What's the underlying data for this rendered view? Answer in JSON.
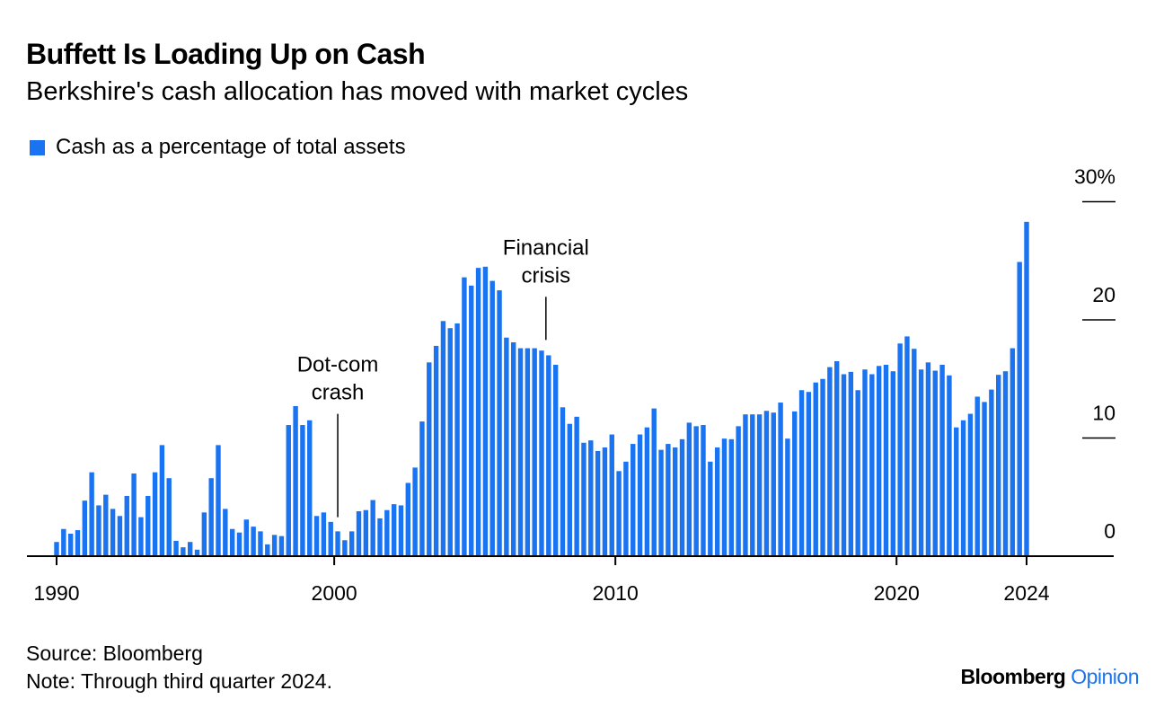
{
  "header": {
    "title": "Buffett Is Loading Up on Cash",
    "subtitle": "Berkshire's cash allocation has moved with market cycles"
  },
  "chart_data": {
    "type": "bar",
    "title": "Buffett Is Loading Up on Cash",
    "subtitle": "Berkshire's cash allocation has moved with market cycles",
    "legend": [
      {
        "label": "Cash as a percentage of total assets",
        "color": "#1a73f0"
      }
    ],
    "legend_position": "top-left",
    "xlabel": "",
    "ylabel": "",
    "frequency": "quarterly",
    "start": "1990 Q1",
    "end": "2024 Q3",
    "ylim": [
      0,
      30
    ],
    "grid": false,
    "y_ticks": [
      {
        "value": 0,
        "label": "0"
      },
      {
        "value": 10,
        "label": "10"
      },
      {
        "value": 20,
        "label": "20"
      },
      {
        "value": 30,
        "label": "30%"
      }
    ],
    "x_ticks": [
      {
        "quarter_index": 0,
        "label": "1990"
      },
      {
        "quarter_index": 39.5,
        "label": "2000"
      },
      {
        "quarter_index": 79.5,
        "label": "2010"
      },
      {
        "quarter_index": 119.5,
        "label": "2020"
      },
      {
        "quarter_index": 138,
        "label": "2024"
      }
    ],
    "annotations": [
      {
        "lines": [
          "Dot-com",
          "crash"
        ],
        "quarter_index": 40,
        "value": 3.3
      },
      {
        "lines": [
          "Financial",
          "crisis"
        ],
        "quarter_index": 70,
        "value": 18.3
      }
    ],
    "values": [
      1.2,
      2.3,
      1.9,
      2.2,
      4.7,
      7.1,
      4.3,
      5.2,
      4.0,
      3.4,
      5.1,
      7.0,
      3.3,
      5.1,
      7.1,
      9.4,
      6.6,
      1.3,
      0.75,
      1.2,
      0.55,
      3.7,
      6.6,
      9.4,
      4.0,
      2.3,
      2.0,
      3.1,
      2.5,
      2.1,
      1.0,
      1.8,
      1.7,
      11.1,
      12.7,
      11.1,
      11.5,
      3.4,
      3.7,
      2.9,
      2.1,
      1.35,
      2.1,
      3.8,
      3.9,
      4.75,
      3.2,
      3.9,
      4.4,
      4.3,
      6.2,
      7.5,
      11.4,
      16.4,
      17.8,
      19.9,
      19.3,
      19.7,
      23.6,
      22.9,
      24.4,
      24.5,
      23.3,
      22.5,
      18.5,
      18.1,
      17.6,
      17.6,
      17.6,
      17.4,
      17.0,
      16.2,
      12.6,
      11.2,
      11.8,
      9.6,
      9.8,
      8.9,
      9.2,
      10.3,
      7.2,
      8.0,
      9.5,
      10.3,
      10.9,
      12.5,
      9.0,
      9.5,
      9.2,
      9.9,
      11.3,
      11.0,
      11.1,
      8.0,
      9.2,
      9.95,
      9.9,
      11.0,
      12.0,
      12.0,
      12.0,
      12.3,
      12.15,
      13.0,
      9.95,
      12.25,
      14.05,
      13.9,
      14.7,
      15.0,
      16.0,
      16.5,
      15.4,
      15.6,
      14.05,
      15.8,
      15.4,
      16.1,
      16.2,
      15.65,
      18.0,
      18.6,
      17.55,
      15.8,
      16.4,
      15.7,
      16.2,
      15.3,
      10.9,
      11.5,
      12.05,
      13.5,
      13.05,
      14.1,
      15.35,
      15.65,
      17.6,
      24.9,
      28.3
    ]
  },
  "footer": {
    "source": "Source: Bloomberg",
    "note": "Note: Through third quarter 2024.",
    "logo_brand": "Bloomberg",
    "logo_section": "Opinion"
  }
}
